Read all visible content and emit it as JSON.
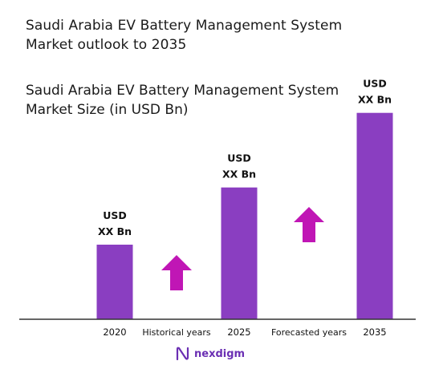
{
  "header": {
    "title": "Saudi Arabia EV Battery Management System Market outlook to 2035"
  },
  "brand": {
    "name": "nexdigm",
    "logo_icon": "nexdigm-logo-icon",
    "color": "#6b2fb3"
  },
  "chart_data": {
    "type": "bar",
    "title": "Saudi Arabia EV Battery Management System Market Size (in USD Bn)",
    "categories": [
      "2020",
      "2025",
      "2035"
    ],
    "values": [
      30,
      53,
      83
    ],
    "value_labels": [
      [
        "USD",
        "XX Bn"
      ],
      [
        "USD",
        "XX Bn"
      ],
      [
        "USD",
        "XX Bn"
      ]
    ],
    "ylim": [
      0,
      100
    ],
    "grid": false,
    "legend": "none",
    "bar_color": "#8a3ec1",
    "annotations": [
      {
        "label": "Historical years",
        "between": [
          "2020",
          "2025"
        ],
        "icon": "arrow-up-icon"
      },
      {
        "label": "Forecasted years",
        "between": [
          "2025",
          "2035"
        ],
        "icon": "arrow-up-icon"
      }
    ],
    "arrow_color": "#c016b5"
  }
}
